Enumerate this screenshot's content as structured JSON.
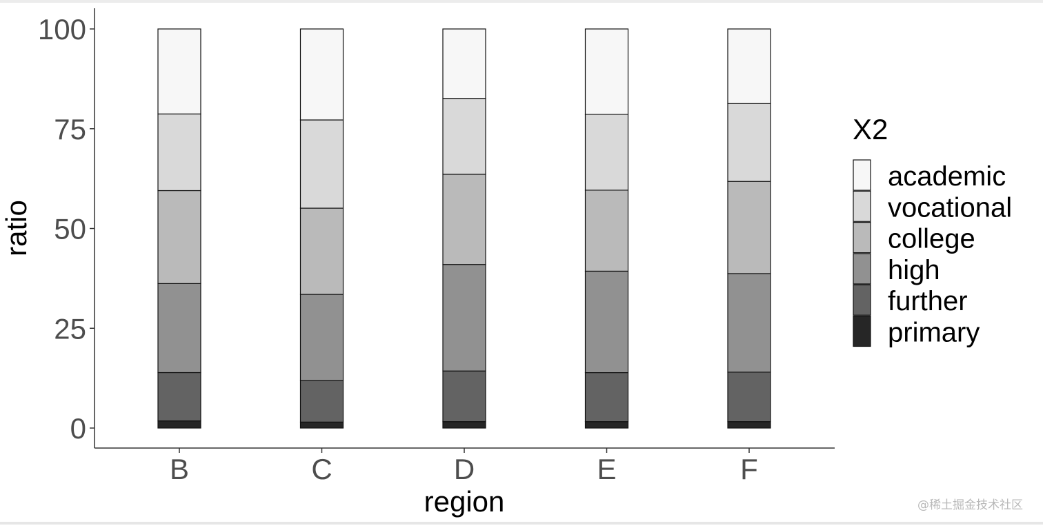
{
  "watermark": "@稀土掘金技术社区",
  "chart_data": {
    "type": "bar",
    "stacked": true,
    "xlabel": "region",
    "ylabel": "ratio",
    "categories": [
      "B",
      "C",
      "D",
      "E",
      "F"
    ],
    "ylim": [
      -5,
      105
    ],
    "yticks": [
      0,
      25,
      50,
      75,
      100
    ],
    "grid": false,
    "legend": {
      "title": "X2",
      "position": "right"
    },
    "series": [
      {
        "name": "primary",
        "color": "#262626",
        "values": [
          1.8,
          1.5,
          1.6,
          1.6,
          1.6
        ]
      },
      {
        "name": "further",
        "color": "#636363",
        "values": [
          12.1,
          10.4,
          12.7,
          12.3,
          12.4
        ]
      },
      {
        "name": "high",
        "color": "#919191",
        "values": [
          22.3,
          21.6,
          26.7,
          25.4,
          24.7
        ]
      },
      {
        "name": "college",
        "color": "#bababa",
        "values": [
          23.3,
          21.6,
          22.6,
          20.3,
          23.1
        ]
      },
      {
        "name": "vocational",
        "color": "#d9d9d9",
        "values": [
          19.2,
          22.1,
          19.0,
          19.0,
          19.5
        ]
      },
      {
        "name": "academic",
        "color": "#f7f7f7",
        "values": [
          21.3,
          22.8,
          17.4,
          21.4,
          18.7
        ]
      }
    ]
  }
}
